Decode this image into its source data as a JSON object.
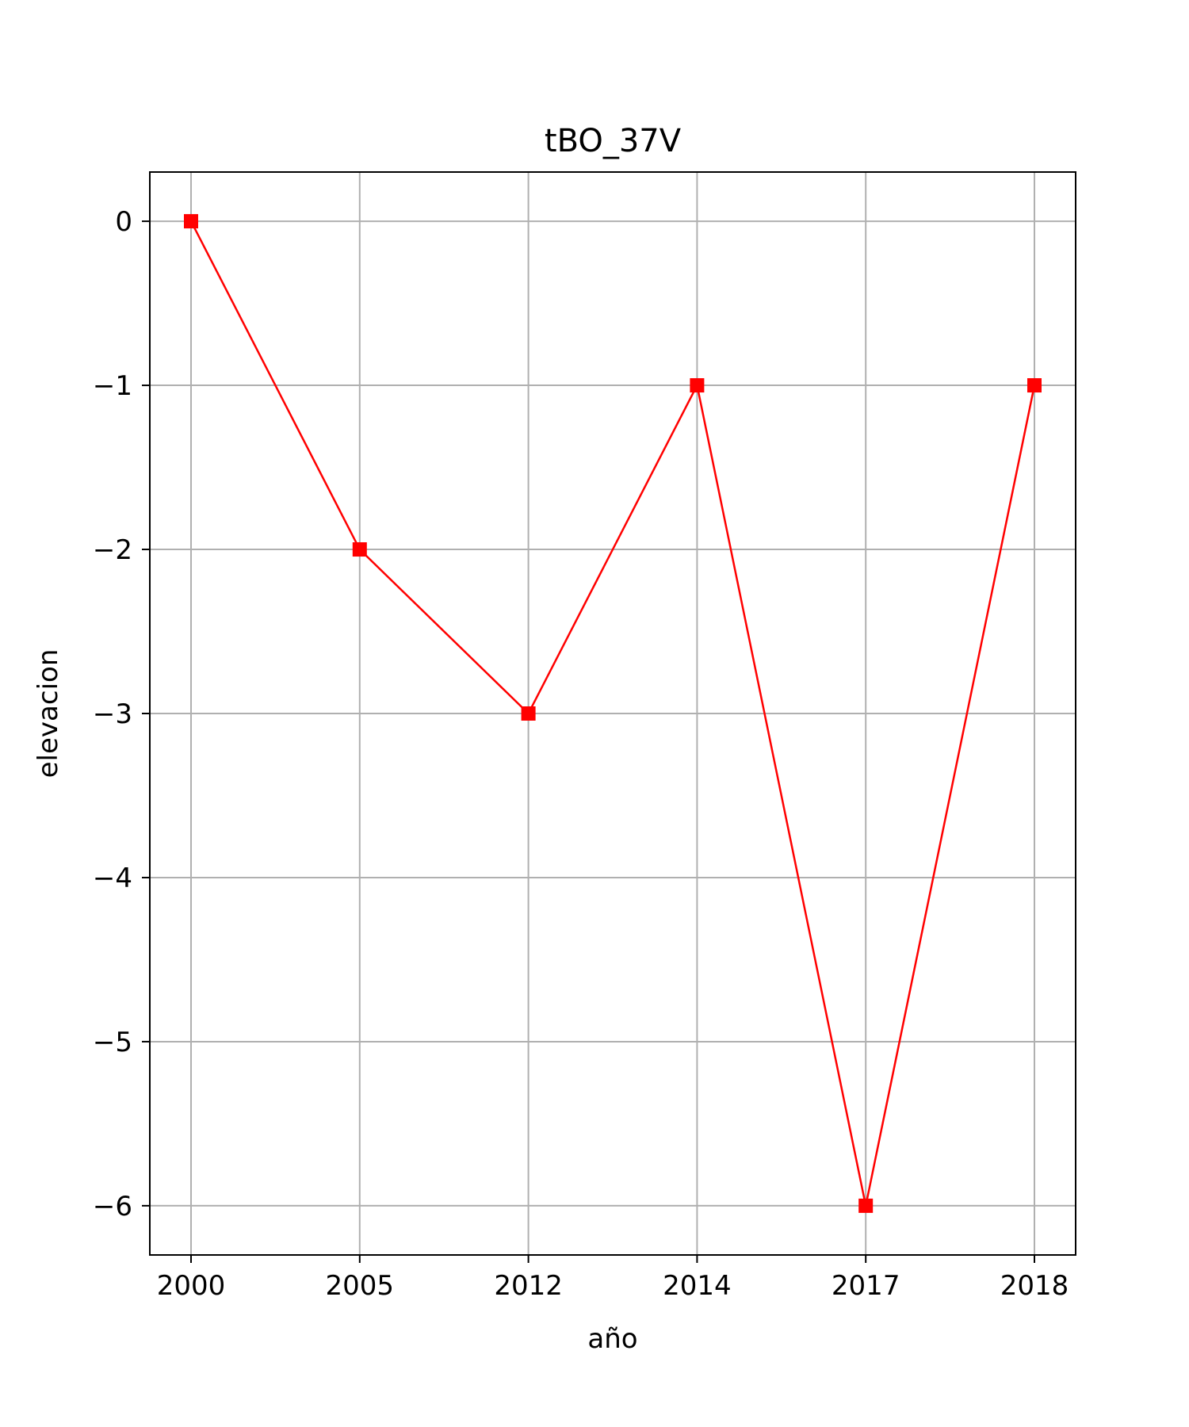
{
  "chart_data": {
    "type": "line",
    "title": "tBO_37V",
    "xlabel": "año",
    "ylabel": "elevacion",
    "categories": [
      "2000",
      "2005",
      "2012",
      "2014",
      "2017",
      "2018"
    ],
    "series": [
      {
        "values": [
          0,
          -2,
          -3,
          -1,
          -6,
          -1
        ],
        "color": "#ff0000",
        "marker": "square"
      }
    ],
    "yticks": [
      0,
      -1,
      -2,
      -3,
      -4,
      -5,
      -6
    ],
    "ytick_labels": [
      "0",
      "−1",
      "−2",
      "−3",
      "−4",
      "−5",
      "−6"
    ],
    "ylim": [
      -6.3,
      0.3
    ],
    "grid": true,
    "grid_color": "#b0b0b0"
  }
}
